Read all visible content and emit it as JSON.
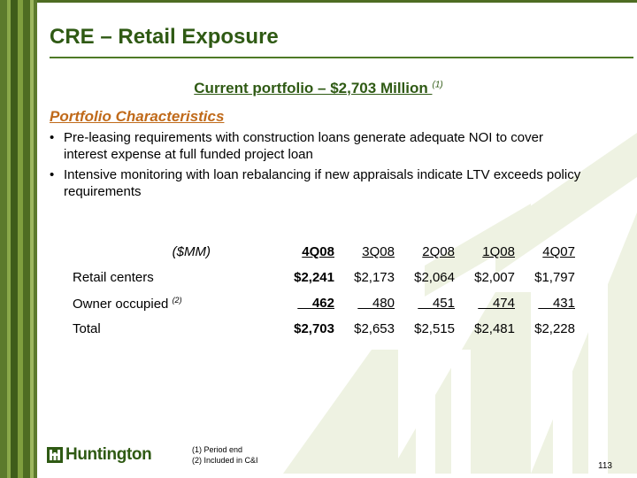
{
  "header": {
    "title": "CRE – Retail Exposure"
  },
  "subtitle": {
    "text": "Current portfolio  – $2,703 Million ",
    "footnote_ref": "(1)"
  },
  "characteristics": {
    "heading": "Portfolio Characteristics",
    "bullets": [
      "Pre-leasing requirements with construction loans generate adequate NOI to cover interest expense at full funded project loan",
      "Intensive monitoring with loan rebalancing if new appraisals indicate LTV exceeds policy requirements"
    ]
  },
  "table": {
    "unit_label": "($MM)",
    "columns": [
      "4Q08",
      "3Q08",
      "2Q08",
      "1Q08",
      "4Q07"
    ],
    "rows": [
      {
        "label": "Retail centers",
        "footnote_ref": "",
        "values": [
          "$2,241",
          "$2,173",
          "$2,064",
          "$2,007",
          "$1,797"
        ]
      },
      {
        "label": "Owner occupied ",
        "footnote_ref": "(2)",
        "values": [
          "462",
          "480",
          "451",
          "474",
          "431"
        ]
      },
      {
        "label": "Total",
        "footnote_ref": "",
        "values": [
          "$2,703",
          "$2,653",
          "$2,515",
          "$2,481",
          "$2,228"
        ]
      }
    ]
  },
  "footnotes": [
    "(1)  Period end",
    "(2)  Included in C&I"
  ],
  "logo": {
    "text": "Huntington"
  },
  "page_number": "113",
  "colors": {
    "brand_green": "#2f5a14",
    "accent_orange": "#c06a1a",
    "watermark": "#eef2e2"
  }
}
